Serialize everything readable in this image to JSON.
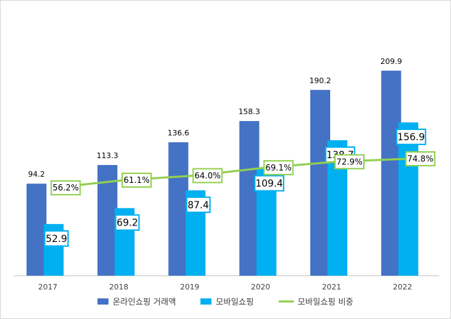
{
  "chart_data": {
    "type": "bar",
    "categories": [
      "2017",
      "2018",
      "2019",
      "2020",
      "2021",
      "2022"
    ],
    "series": [
      {
        "name": "온라인쇼핑 거래액",
        "type": "bar",
        "values": [
          94.2,
          113.3,
          136.6,
          158.3,
          190.2,
          209.9
        ],
        "labels": [
          "94.2",
          "113.3",
          "136.6",
          "158.3",
          "190.2",
          "209.9"
        ],
        "color": "#4472c4"
      },
      {
        "name": "모바일쇼핑",
        "type": "bar",
        "values": [
          52.9,
          69.2,
          87.4,
          109.4,
          138.7,
          156.9
        ],
        "labels": [
          "52.9",
          "69.2",
          "87.4",
          "109.4",
          "138.7",
          "156.9"
        ],
        "color": "#00b0f0"
      },
      {
        "name": "모바일쇼핑 비중",
        "type": "line",
        "values": [
          56.2,
          61.1,
          64.0,
          69.1,
          72.9,
          74.8
        ],
        "labels": [
          "56.2%",
          "61.1%",
          "64.0%",
          "69.1%",
          "72.9%",
          "74.8%"
        ],
        "color": "#92d050"
      }
    ],
    "ylim": [
      0,
      240
    ],
    "ylim_secondary": [
      0,
      150
    ],
    "grid": false,
    "legend_position": "bottom"
  }
}
